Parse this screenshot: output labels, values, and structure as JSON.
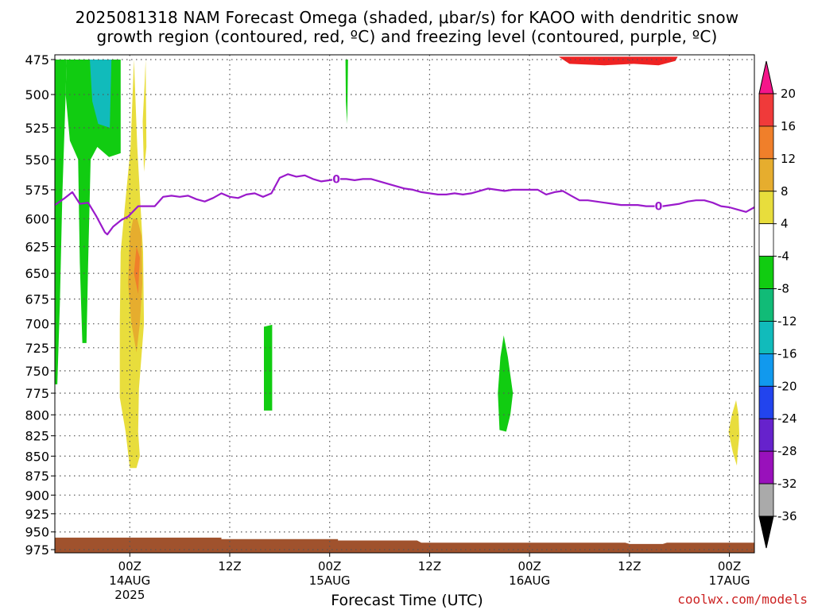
{
  "title_lines": [
    "2025081318 NAM Forecast Omega (shaded, μbar/s) for KAOO with dendritic snow",
    "growth region (contoured, red, ºC) and freezing level (contoured, purple, ºC)"
  ],
  "credit": "coolwx.com/models",
  "chart_data": {
    "type": "heatmap",
    "xlabel": "Forecast Time (UTC)",
    "ylabel": "",
    "x_unit": "forecast hour from 2025081318",
    "xlim": [
      -3,
      81
    ],
    "y_unit": "mb",
    "ylim": [
      475,
      975
    ],
    "y_scale": "log",
    "y_ticks": [
      475,
      500,
      525,
      550,
      575,
      600,
      625,
      650,
      675,
      700,
      725,
      750,
      775,
      800,
      825,
      850,
      875,
      900,
      925,
      950,
      975
    ],
    "x_ticks": [
      {
        "hour": 6,
        "label": "00Z",
        "sub": "14AUG",
        "sub2": "2025"
      },
      {
        "hour": 18,
        "label": "12Z",
        "sub": "",
        "sub2": ""
      },
      {
        "hour": 30,
        "label": "00Z",
        "sub": "15AUG",
        "sub2": ""
      },
      {
        "hour": 42,
        "label": "12Z",
        "sub": "",
        "sub2": ""
      },
      {
        "hour": 54,
        "label": "00Z",
        "sub": "16AUG",
        "sub2": ""
      },
      {
        "hour": 66,
        "label": "12Z",
        "sub": "",
        "sub2": ""
      },
      {
        "hour": 78,
        "label": "00Z",
        "sub": "17AUG",
        "sub2": ""
      }
    ],
    "grid": true,
    "colorbar": {
      "labels": [
        "20",
        "16",
        "12",
        "8",
        "4",
        "-4",
        "-8",
        "-12",
        "-16",
        "-20",
        "-24",
        "-28",
        "-32",
        "-36"
      ],
      "colors": [
        "#f5158a",
        "#f03a3a",
        "#f07f2a",
        "#e6ad2e",
        "#e8dd3c",
        "#ffffff",
        "#11cc11",
        "#11bb77",
        "#11bbbb",
        "#1199ee",
        "#2244ee",
        "#6622cc",
        "#9911bb",
        "#aaaaaa"
      ]
    },
    "omega_regions": [
      {
        "name": "omega-upward-column",
        "value": -6,
        "color": "#11cc11",
        "poly": [
          [
            -3,
            475
          ],
          [
            -1.6,
            475
          ],
          [
            -1.7,
            500
          ],
          [
            -2.1,
            580
          ],
          [
            -2.4,
            680
          ],
          [
            -2.7,
            765
          ],
          [
            -3,
            765
          ]
        ]
      },
      {
        "name": "omega-upward-column",
        "value": -6,
        "color": "#11cc11",
        "poly": [
          [
            -1.6,
            475
          ],
          [
            4.9,
            475
          ],
          [
            4.9,
            545
          ],
          [
            3.5,
            548
          ],
          [
            2.1,
            540
          ],
          [
            1.3,
            550
          ],
          [
            1.0,
            640
          ],
          [
            0.8,
            720
          ],
          [
            0.3,
            720
          ],
          [
            0.0,
            640
          ],
          [
            -0.2,
            550
          ],
          [
            -1.2,
            535
          ],
          [
            -1.7,
            500
          ]
        ]
      },
      {
        "name": "omega-upward-core",
        "value": -14,
        "color": "#11bbbb",
        "poly": [
          [
            1.2,
            475
          ],
          [
            3.8,
            475
          ],
          [
            3.6,
            525
          ],
          [
            2.2,
            522
          ],
          [
            1.5,
            505
          ]
        ]
      },
      {
        "name": "omega-downward-column",
        "value": 6,
        "color": "#e8dd3c",
        "poly": [
          [
            6.5,
            475
          ],
          [
            6.9,
            540
          ],
          [
            7.3,
            590
          ],
          [
            7.6,
            630
          ],
          [
            7.7,
            700
          ],
          [
            7.1,
            770
          ],
          [
            7.0,
            820
          ],
          [
            7.2,
            850
          ],
          [
            6.8,
            865
          ],
          [
            6.0,
            865
          ],
          [
            5.5,
            820
          ],
          [
            4.8,
            780
          ],
          [
            4.8,
            700
          ],
          [
            4.9,
            630
          ],
          [
            5.4,
            590
          ],
          [
            6.1,
            540
          ]
        ]
      },
      {
        "name": "omega-downward-core",
        "value": 10,
        "color": "#e6ad2e",
        "poly": [
          [
            6.9,
            600
          ],
          [
            7.4,
            615
          ],
          [
            7.5,
            660
          ],
          [
            7.2,
            700
          ],
          [
            6.8,
            730
          ],
          [
            6.2,
            700
          ],
          [
            5.8,
            660
          ],
          [
            6.0,
            615
          ],
          [
            6.4,
            600
          ]
        ]
      },
      {
        "name": "omega-strong-downward",
        "value": 13,
        "color": "#f07f2a",
        "poly": [
          [
            6.8,
            625
          ],
          [
            7.2,
            635
          ],
          [
            7.0,
            670
          ],
          [
            6.5,
            650
          ]
        ]
      },
      {
        "name": "omega-upward-streak",
        "value": -6,
        "color": "#11cc11",
        "poly": [
          [
            31.9,
            475
          ],
          [
            32.2,
            475
          ],
          [
            32.15,
            505
          ],
          [
            32.1,
            522
          ],
          [
            31.95,
            505
          ]
        ]
      },
      {
        "name": "omega-upward-blob",
        "value": -6,
        "color": "#11cc11",
        "poly": [
          [
            22.1,
            703
          ],
          [
            23.1,
            701
          ],
          [
            23.1,
            795
          ],
          [
            22.1,
            795
          ]
        ]
      },
      {
        "name": "omega-upward-blob",
        "value": -6,
        "color": "#11cc11",
        "poly": [
          [
            50.9,
            712
          ],
          [
            51.4,
            735
          ],
          [
            52.0,
            775
          ],
          [
            51.7,
            800
          ],
          [
            51.2,
            820
          ],
          [
            50.4,
            818
          ],
          [
            50.2,
            775
          ],
          [
            50.5,
            735
          ]
        ]
      },
      {
        "name": "omega-downward-blob",
        "value": 6,
        "color": "#e8dd3c",
        "poly": [
          [
            78.8,
            783
          ],
          [
            79.1,
            800
          ],
          [
            79.2,
            825
          ],
          [
            79.0,
            845
          ],
          [
            78.9,
            862
          ],
          [
            78.4,
            845
          ],
          [
            77.9,
            820
          ],
          [
            78.3,
            800
          ]
        ]
      },
      {
        "name": "omega-downward-blob",
        "value": 6,
        "color": "#e8dd3c",
        "poly": [
          [
            7.9,
            475
          ],
          [
            8.0,
            540
          ],
          [
            7.7,
            560
          ],
          [
            7.55,
            520
          ],
          [
            7.8,
            490
          ]
        ]
      }
    ],
    "terrain": {
      "color": "#a0522d",
      "points": [
        [
          -3,
          958
        ],
        [
          17,
          958
        ],
        [
          17,
          960
        ],
        [
          31,
          960
        ],
        [
          31,
          962
        ],
        [
          40.5,
          962
        ],
        [
          41,
          965
        ],
        [
          65.5,
          965
        ],
        [
          66,
          967
        ],
        [
          70,
          967
        ],
        [
          70.5,
          965
        ],
        [
          81,
          965
        ]
      ]
    },
    "dendritic_region": {
      "color": "#ee2222",
      "poly": [
        [
          57.5,
          473
        ],
        [
          58.8,
          478
        ],
        [
          63,
          479
        ],
        [
          66.5,
          478
        ],
        [
          69.5,
          479
        ],
        [
          71.5,
          476
        ],
        [
          71.8,
          473
        ]
      ]
    },
    "freezing_level": {
      "color": "#9a1acb",
      "label": "0",
      "label_hours": [
        30.8,
        69.5
      ],
      "points": [
        [
          -3,
          588
        ],
        [
          -1.8,
          582
        ],
        [
          -0.9,
          577
        ],
        [
          0,
          587
        ],
        [
          1,
          586
        ],
        [
          2,
          598
        ],
        [
          3,
          612
        ],
        [
          3.3,
          614
        ],
        [
          4,
          607
        ],
        [
          5,
          601
        ],
        [
          5.8,
          598
        ],
        [
          7,
          589
        ],
        [
          8,
          589
        ],
        [
          9,
          589
        ],
        [
          10,
          581
        ],
        [
          11,
          580
        ],
        [
          12,
          581
        ],
        [
          13,
          580
        ],
        [
          14,
          583
        ],
        [
          15,
          585
        ],
        [
          16,
          582
        ],
        [
          17,
          578
        ],
        [
          18,
          581
        ],
        [
          19,
          582
        ],
        [
          20,
          579
        ],
        [
          21,
          578
        ],
        [
          22,
          581
        ],
        [
          23,
          578
        ],
        [
          24,
          565
        ],
        [
          25,
          562
        ],
        [
          26,
          564
        ],
        [
          27,
          563
        ],
        [
          28,
          566
        ],
        [
          29,
          568
        ],
        [
          30,
          567
        ],
        [
          31,
          566
        ],
        [
          32,
          566
        ],
        [
          33,
          567
        ],
        [
          34,
          566
        ],
        [
          35,
          566
        ],
        [
          36,
          568
        ],
        [
          37,
          570
        ],
        [
          38,
          572
        ],
        [
          39,
          574
        ],
        [
          40,
          575
        ],
        [
          41,
          577
        ],
        [
          42,
          578
        ],
        [
          43,
          579
        ],
        [
          44,
          579
        ],
        [
          45,
          578
        ],
        [
          46,
          579
        ],
        [
          47,
          578
        ],
        [
          48,
          576
        ],
        [
          49,
          574
        ],
        [
          50,
          575
        ],
        [
          51,
          576
        ],
        [
          52,
          575
        ],
        [
          53,
          575
        ],
        [
          54,
          575
        ],
        [
          55,
          575
        ],
        [
          56,
          579
        ],
        [
          57,
          577
        ],
        [
          58,
          576
        ],
        [
          59,
          580
        ],
        [
          60,
          584
        ],
        [
          61,
          584
        ],
        [
          62,
          585
        ],
        [
          63,
          586
        ],
        [
          64,
          587
        ],
        [
          65,
          588
        ],
        [
          66,
          588
        ],
        [
          67,
          588
        ],
        [
          68,
          589
        ],
        [
          69,
          589
        ],
        [
          70,
          589
        ],
        [
          71,
          588
        ],
        [
          72,
          587
        ],
        [
          73,
          585
        ],
        [
          74,
          584
        ],
        [
          75,
          584
        ],
        [
          76,
          586
        ],
        [
          77,
          589
        ],
        [
          78,
          590
        ],
        [
          79,
          592
        ],
        [
          80,
          594
        ],
        [
          81,
          590
        ]
      ]
    }
  }
}
